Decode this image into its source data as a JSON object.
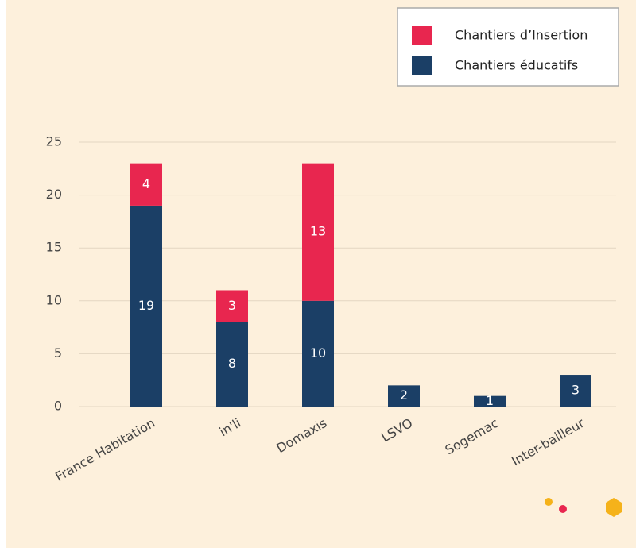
{
  "chart_data": {
    "type": "stacked_bar",
    "categories": [
      "France Habitation",
      "in'li",
      "Domaxis",
      "LSVO",
      "Sogemac",
      "Inter-bailleur"
    ],
    "series": [
      {
        "name": "Chantiers éducatifs",
        "color": "#1b3f66",
        "values": [
          19,
          8,
          10,
          2,
          1,
          3
        ]
      },
      {
        "name": "Chantiers d’Insertion",
        "color": "#e8264f",
        "values": [
          4,
          3,
          13,
          null,
          null,
          null
        ]
      }
    ],
    "ylim": [
      0,
      25
    ],
    "yticks": [
      0,
      5,
      10,
      15,
      20,
      25
    ],
    "grid": true,
    "legend": "top-right"
  }
}
